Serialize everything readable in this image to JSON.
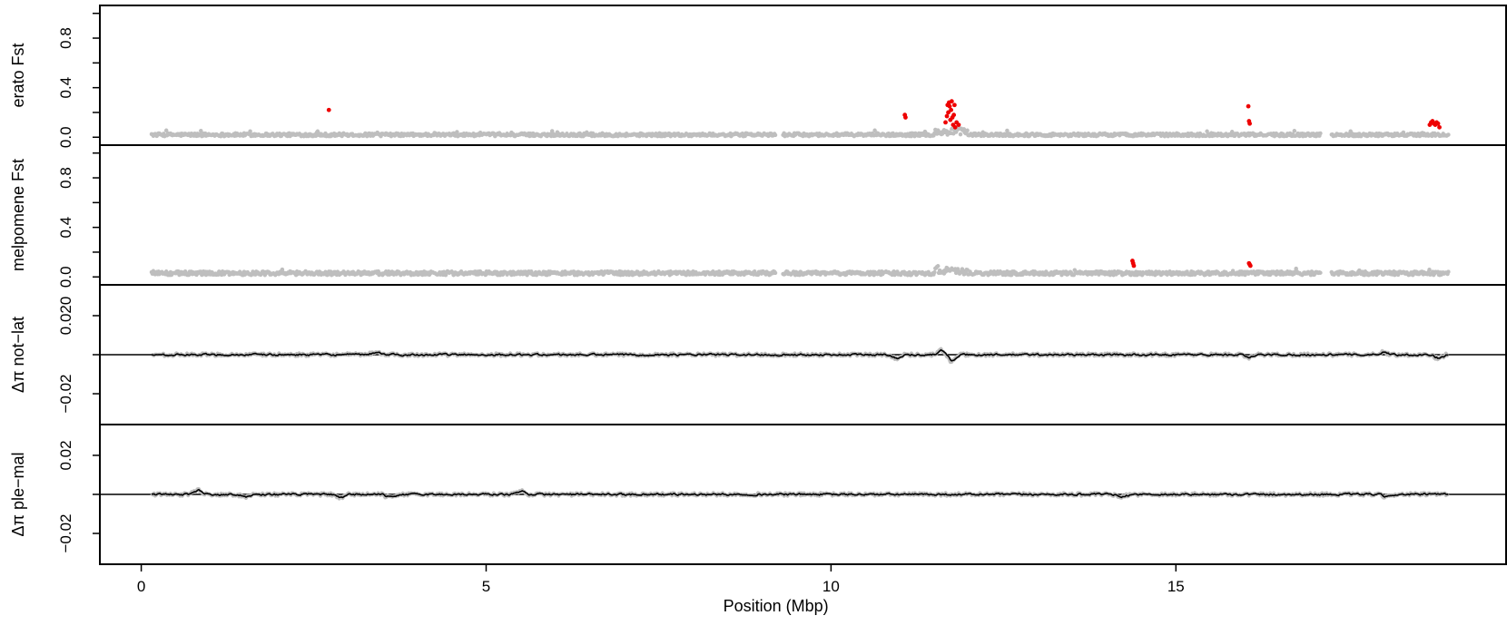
{
  "chart_data": {
    "type": "scatter",
    "x_axis": {
      "label": "Position (Mbp)",
      "range": [
        -0.6,
        19.8
      ],
      "ticks": [
        0,
        5,
        10,
        15
      ]
    },
    "panels": [
      {
        "id": "erato-fst",
        "ylabel": "erato Fst",
        "ylim": [
          -0.02,
          1.02
        ],
        "yticks": [
          0.0,
          0.2,
          0.4,
          0.6,
          0.8,
          1.0
        ],
        "ytick_labels": [
          {
            "value": 0.0,
            "label": "0.0"
          },
          {
            "value": 0.4,
            "label": "0.4"
          },
          {
            "value": 0.8,
            "label": "0.8"
          }
        ],
        "zero_line": false,
        "background": {
          "kind": "points",
          "color": "#bebebe",
          "base": 0.02,
          "jitter": 0.012
        },
        "highlight": {
          "color": "#ee0000",
          "x": [
            2.72,
            11.07,
            11.08,
            11.66,
            11.68,
            11.69,
            11.7,
            11.71,
            11.72,
            11.73,
            11.74,
            11.75,
            11.76,
            11.77,
            11.78,
            11.79,
            11.8,
            11.82,
            11.85,
            16.05,
            16.06,
            16.07,
            18.68,
            18.7,
            18.72,
            18.74,
            18.76,
            18.78,
            18.8,
            18.82
          ],
          "y": [
            0.22,
            0.18,
            0.16,
            0.12,
            0.17,
            0.26,
            0.2,
            0.28,
            0.25,
            0.14,
            0.22,
            0.29,
            0.16,
            0.1,
            0.18,
            0.26,
            0.08,
            0.12,
            0.1,
            0.25,
            0.13,
            0.11,
            0.1,
            0.12,
            0.13,
            0.11,
            0.1,
            0.12,
            0.11,
            0.08
          ]
        }
      },
      {
        "id": "melpomene-fst",
        "ylabel": "melpomene Fst",
        "ylim": [
          -0.02,
          1.02
        ],
        "yticks": [
          0.0,
          0.2,
          0.4,
          0.6,
          0.8,
          1.0
        ],
        "ytick_labels": [
          {
            "value": 0.0,
            "label": "0.0"
          },
          {
            "value": 0.4,
            "label": "0.4"
          },
          {
            "value": 0.8,
            "label": "0.8"
          }
        ],
        "zero_line": false,
        "background": {
          "kind": "points",
          "color": "#bebebe",
          "base": 0.03,
          "jitter": 0.015
        },
        "highlight": {
          "color": "#ee0000",
          "x": [
            14.37,
            14.38,
            14.39,
            16.06,
            16.07,
            16.08
          ],
          "y": [
            0.13,
            0.11,
            0.09,
            0.11,
            0.1,
            0.09
          ]
        }
      },
      {
        "id": "dpi-not-lat",
        "ylabel": "Δπ not−lat",
        "ylim": [
          -0.033,
          0.033
        ],
        "yticks": [
          -0.02,
          0,
          0.02
        ],
        "ytick_labels": [
          {
            "value": -0.02,
            "label": "−0.02"
          },
          {
            "value": 0.02,
            "label": "0.020"
          }
        ],
        "zero_line": true,
        "background": {
          "kind": "track",
          "color": "#bebebe",
          "line_color": "#000000",
          "amplitude": 0.0008
        },
        "features": [
          {
            "x": 11.74,
            "dy": -0.0035
          },
          {
            "x": 11.6,
            "dy": 0.0025
          },
          {
            "x": 10.95,
            "dy": -0.002
          },
          {
            "x": 3.4,
            "dy": 0.0015
          },
          {
            "x": 16.05,
            "dy": -0.0018
          },
          {
            "x": 18.0,
            "dy": 0.0015
          },
          {
            "x": 18.8,
            "dy": -0.002
          }
        ]
      },
      {
        "id": "dpi-ple-mal",
        "ylabel": "Δπ ple−mal",
        "ylim": [
          -0.033,
          0.033
        ],
        "yticks": [
          -0.02,
          0,
          0.02
        ],
        "ytick_labels": [
          {
            "value": -0.02,
            "label": "−0.02"
          },
          {
            "value": 0.02,
            "label": "0.02"
          }
        ],
        "zero_line": true,
        "background": {
          "kind": "track",
          "color": "#bebebe",
          "line_color": "#000000",
          "amplitude": 0.0008
        },
        "features": [
          {
            "x": 0.82,
            "dy": 0.0025
          },
          {
            "x": 1.5,
            "dy": -0.0015
          },
          {
            "x": 2.88,
            "dy": -0.0022
          },
          {
            "x": 3.6,
            "dy": -0.0018
          },
          {
            "x": 5.5,
            "dy": 0.002
          },
          {
            "x": 14.2,
            "dy": -0.0018
          },
          {
            "x": 18.05,
            "dy": -0.0015
          }
        ]
      }
    ],
    "data_range_x": [
      0.15,
      18.95
    ]
  }
}
